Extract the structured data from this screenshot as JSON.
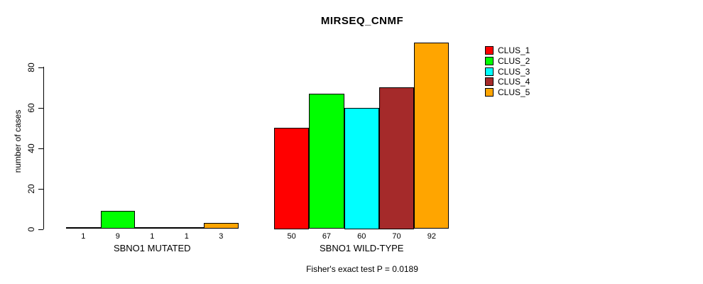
{
  "chart_data": {
    "type": "bar",
    "title": "MIRSEQ_CNMF",
    "xlabel": "",
    "ylabel": "number of cases",
    "ylim": [
      0,
      92
    ],
    "yticks": [
      0,
      20,
      40,
      60,
      80
    ],
    "grid": false,
    "legend_position": "right",
    "background_color": "#ffffff",
    "axis_color": "#000000",
    "series": [
      {
        "name": "CLUS_1",
        "color": "#ff0000"
      },
      {
        "name": "CLUS_2",
        "color": "#00ff00"
      },
      {
        "name": "CLUS_3",
        "color": "#00ffff"
      },
      {
        "name": "CLUS_4",
        "color": "#a52a2a"
      },
      {
        "name": "CLUS_5",
        "color": "#ffa500"
      }
    ],
    "groups": [
      {
        "label": "SBNO1 MUTATED",
        "values": [
          1,
          9,
          1,
          1,
          3
        ],
        "value_labels": [
          "1",
          "9",
          "1",
          "1",
          "3"
        ]
      },
      {
        "label": "SBNO1 WILD-TYPE",
        "values": [
          50,
          67,
          60,
          70,
          92
        ],
        "value_labels": [
          "50",
          "67",
          "60",
          "70",
          "92"
        ]
      }
    ],
    "annotation": "Fisher's exact test P = 0.0189"
  }
}
